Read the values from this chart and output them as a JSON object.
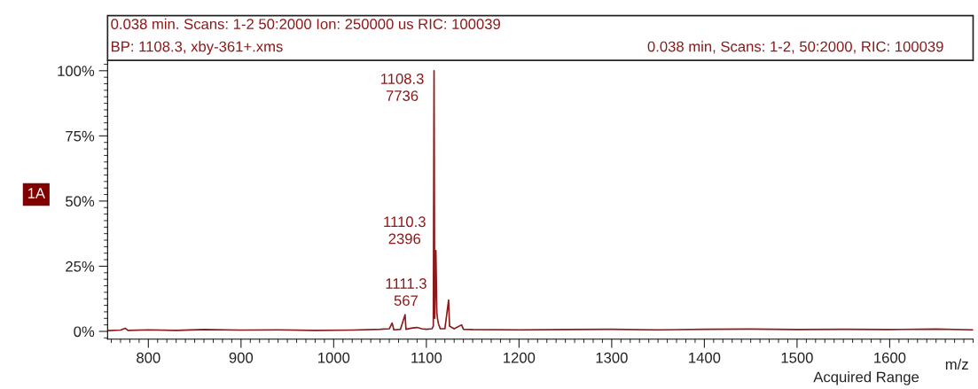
{
  "chart_data": {
    "type": "line",
    "title": "0.038 min. Scans: 1-2 50:2000 Ion: 250000 us RIC: 100039",
    "subtitle": "BP: 1108.3, xby-361+.xms",
    "xlabel": "m/z",
    "annotations": [
      "0.038 min, Scans: 1-2, 50:2000, RIC: 100039",
      "1A",
      "Acquired Range",
      {
        "text": "1108.3\n7736",
        "x": 1108.3,
        "y": 100
      },
      {
        "text": "1110.3\n2396",
        "x": 1110.3,
        "y": 31
      },
      {
        "text": "1111.3\n567",
        "x": 1111.3,
        "y": 7.3
      }
    ],
    "series": [
      {
        "color": "#8b1a1a",
        "x": [
          756,
          770,
          775,
          778,
          800,
          830,
          860,
          900,
          940,
          980,
          1020,
          1050,
          1060,
          1063,
          1065,
          1072,
          1077,
          1078,
          1085,
          1090,
          1095,
          1100,
          1106,
          1107.5,
          1108.3,
          1109,
          1110.3,
          1111.3,
          1112,
          1113,
          1115,
          1120,
          1124,
          1125,
          1130,
          1138,
          1140,
          1150,
          1200,
          1250,
          1300,
          1350,
          1400,
          1450,
          1500,
          1550,
          1600,
          1650,
          1690
        ],
        "values": [
          0.3,
          0.5,
          1.2,
          0.4,
          0.6,
          0.4,
          0.7,
          0.5,
          0.6,
          0.4,
          0.5,
          0.8,
          1.0,
          3.2,
          0.6,
          0.8,
          6.4,
          0.8,
          1.3,
          1.5,
          1.0,
          0.8,
          1.0,
          2.0,
          100,
          5,
          31,
          7.3,
          5,
          3,
          1,
          1.0,
          12,
          2,
          1,
          2.5,
          0.8,
          0.7,
          0.6,
          0.7,
          0.8,
          0.6,
          0.8,
          0.9,
          0.7,
          0.8,
          0.7,
          0.9,
          0.6
        ]
      }
    ],
    "xlim": [
      756,
      1690
    ],
    "ylim": [
      -3,
      104
    ],
    "xticks": [
      800,
      900,
      1000,
      1100,
      1200,
      1300,
      1400,
      1500,
      1600
    ],
    "yticks": [
      {
        "value": 0,
        "label": "0%"
      },
      {
        "value": 25,
        "label": "25%"
      },
      {
        "value": 50,
        "label": "50%"
      },
      {
        "value": 75,
        "label": "75%"
      },
      {
        "value": 100,
        "label": "100%"
      }
    ],
    "grid": false,
    "legend": false,
    "marker": "none",
    "line_style": "solid"
  }
}
